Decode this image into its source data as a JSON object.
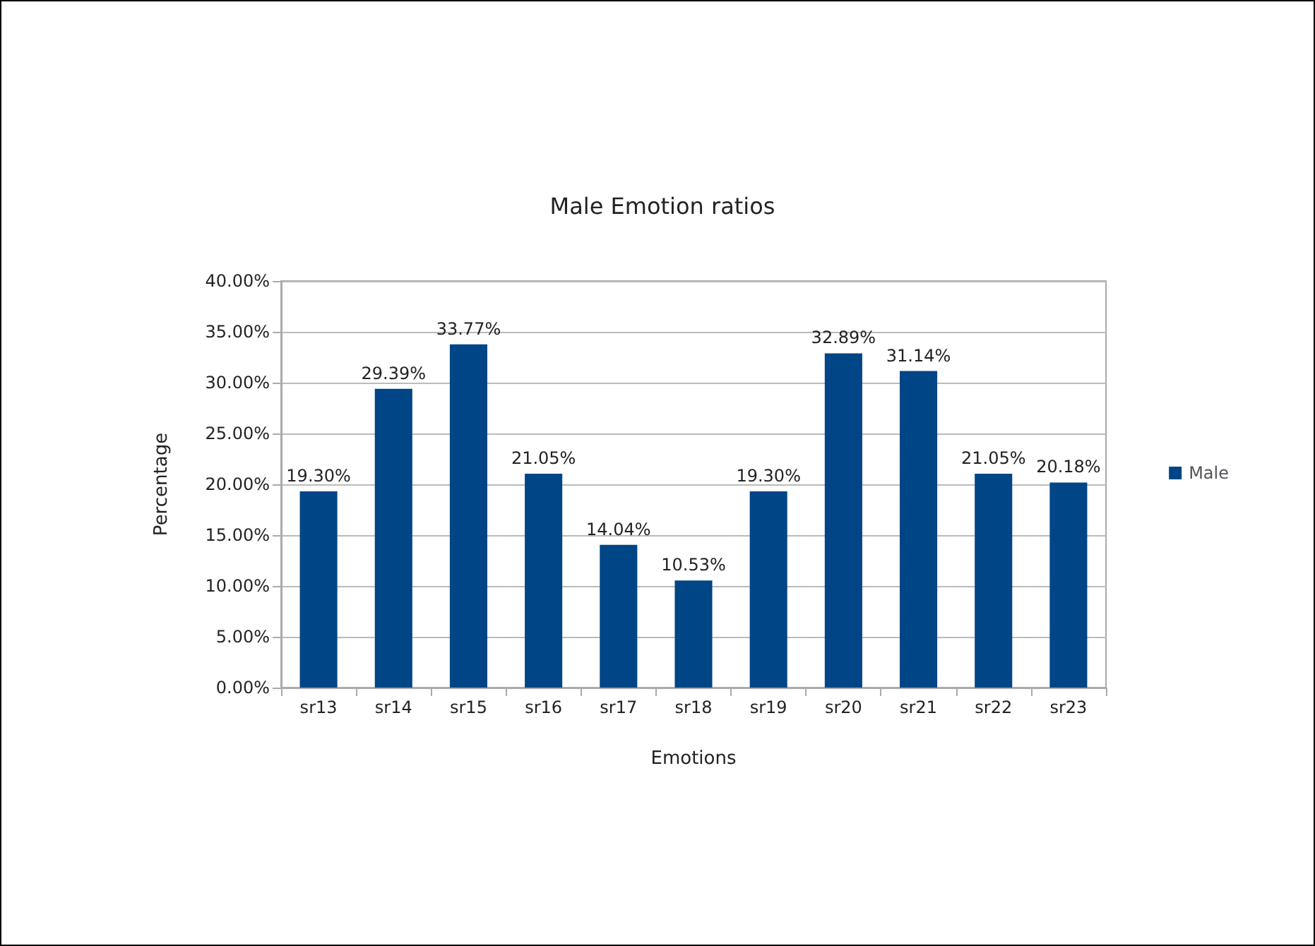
{
  "chart_data": {
    "type": "bar",
    "title": "Male Emotion ratios",
    "xlabel": "Emotions",
    "ylabel": "Percentage",
    "categories": [
      "sr13",
      "sr14",
      "sr15",
      "sr16",
      "sr17",
      "sr18",
      "sr19",
      "sr20",
      "sr21",
      "sr22",
      "sr23"
    ],
    "series": [
      {
        "name": "Male",
        "color": "#004586",
        "values": [
          19.3,
          29.39,
          33.77,
          21.05,
          14.04,
          10.53,
          19.3,
          32.89,
          31.14,
          21.05,
          20.18
        ],
        "value_labels": [
          "19.30%",
          "29.39%",
          "33.77%",
          "21.05%",
          "14.04%",
          "10.53%",
          "19.30%",
          "32.89%",
          "31.14%",
          "21.05%",
          "20.18%"
        ]
      }
    ],
    "ylim": [
      0,
      40
    ],
    "yticks": [
      {
        "value": 0,
        "label": "0.00%"
      },
      {
        "value": 5,
        "label": "5.00%"
      },
      {
        "value": 10,
        "label": "10.00%"
      },
      {
        "value": 15,
        "label": "15.00%"
      },
      {
        "value": 20,
        "label": "20.00%"
      },
      {
        "value": 25,
        "label": "25.00%"
      },
      {
        "value": 30,
        "label": "30.00%"
      },
      {
        "value": 35,
        "label": "35.00%"
      },
      {
        "value": 40,
        "label": "40.00%"
      }
    ],
    "grid": "y",
    "legend": "right"
  }
}
